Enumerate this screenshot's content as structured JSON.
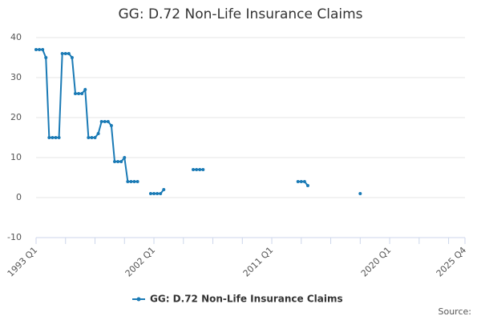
{
  "chart_data": {
    "type": "line",
    "title": "GG: D.72 Non-Life Insurance Claims",
    "source": "Source:",
    "categories": [
      "1993 Q1",
      null,
      null,
      null,
      null,
      null,
      null,
      null,
      null,
      null,
      null,
      null,
      null,
      null,
      null,
      null,
      null,
      null,
      null,
      null,
      null,
      null,
      null,
      null,
      null,
      null,
      null,
      null,
      null,
      null,
      null,
      null,
      null,
      null,
      null,
      null,
      "2002 Q1",
      null,
      null,
      null,
      null,
      null,
      null,
      null,
      null,
      null,
      null,
      null,
      null,
      null,
      null,
      null,
      null,
      null,
      null,
      null,
      null,
      null,
      null,
      null,
      null,
      null,
      null,
      null,
      null,
      null,
      null,
      null,
      null,
      null,
      null,
      null,
      "2011 Q1",
      null,
      null,
      null,
      null,
      null,
      null,
      null,
      null,
      null,
      null,
      null,
      null,
      null,
      null,
      null,
      null,
      null,
      null,
      null,
      null,
      null,
      null,
      null,
      null,
      null,
      null,
      null,
      null,
      null,
      null,
      null,
      null,
      null,
      null,
      null,
      "2020 Q1",
      null,
      null,
      null,
      null,
      null,
      null,
      null,
      null,
      null,
      null,
      null,
      null,
      null,
      null,
      null,
      null,
      null,
      null,
      null,
      null,
      null,
      null,
      "2025 Q4"
    ],
    "series": [
      {
        "name": "GG: D.72 Non-Life Insurance Claims",
        "color": "#1a7ab5",
        "values": [
          37,
          37,
          37,
          35,
          15,
          15,
          15,
          15,
          36,
          36,
          36,
          35,
          26,
          26,
          26,
          27,
          15,
          15,
          15,
          16,
          19,
          19,
          19,
          18,
          9,
          9,
          9,
          10,
          4,
          4,
          4,
          4,
          null,
          null,
          null,
          1,
          1,
          1,
          1,
          2,
          null,
          null,
          null,
          null,
          null,
          null,
          null,
          null,
          7,
          7,
          7,
          7,
          null,
          null,
          null,
          null,
          null,
          null,
          null,
          null,
          null,
          null,
          null,
          null,
          null,
          null,
          null,
          null,
          null,
          null,
          null,
          null,
          null,
          null,
          null,
          null,
          null,
          null,
          null,
          null,
          4,
          4,
          4,
          3,
          null,
          null,
          null,
          null,
          null,
          null,
          null,
          null,
          null,
          null,
          null,
          null,
          null,
          null,
          null,
          1,
          null,
          null,
          null,
          null,
          null,
          null,
          null,
          null,
          null,
          null,
          null,
          null,
          null,
          null,
          null,
          null,
          null,
          null,
          null,
          null,
          null,
          null,
          null,
          null,
          null,
          null,
          null,
          null,
          null,
          null,
          null,
          null
        ]
      }
    ],
    "ylim": [
      -10,
      40
    ],
    "yticks": [
      -10,
      0,
      10,
      20,
      30,
      40
    ],
    "grid": true,
    "legend": "bottom"
  }
}
